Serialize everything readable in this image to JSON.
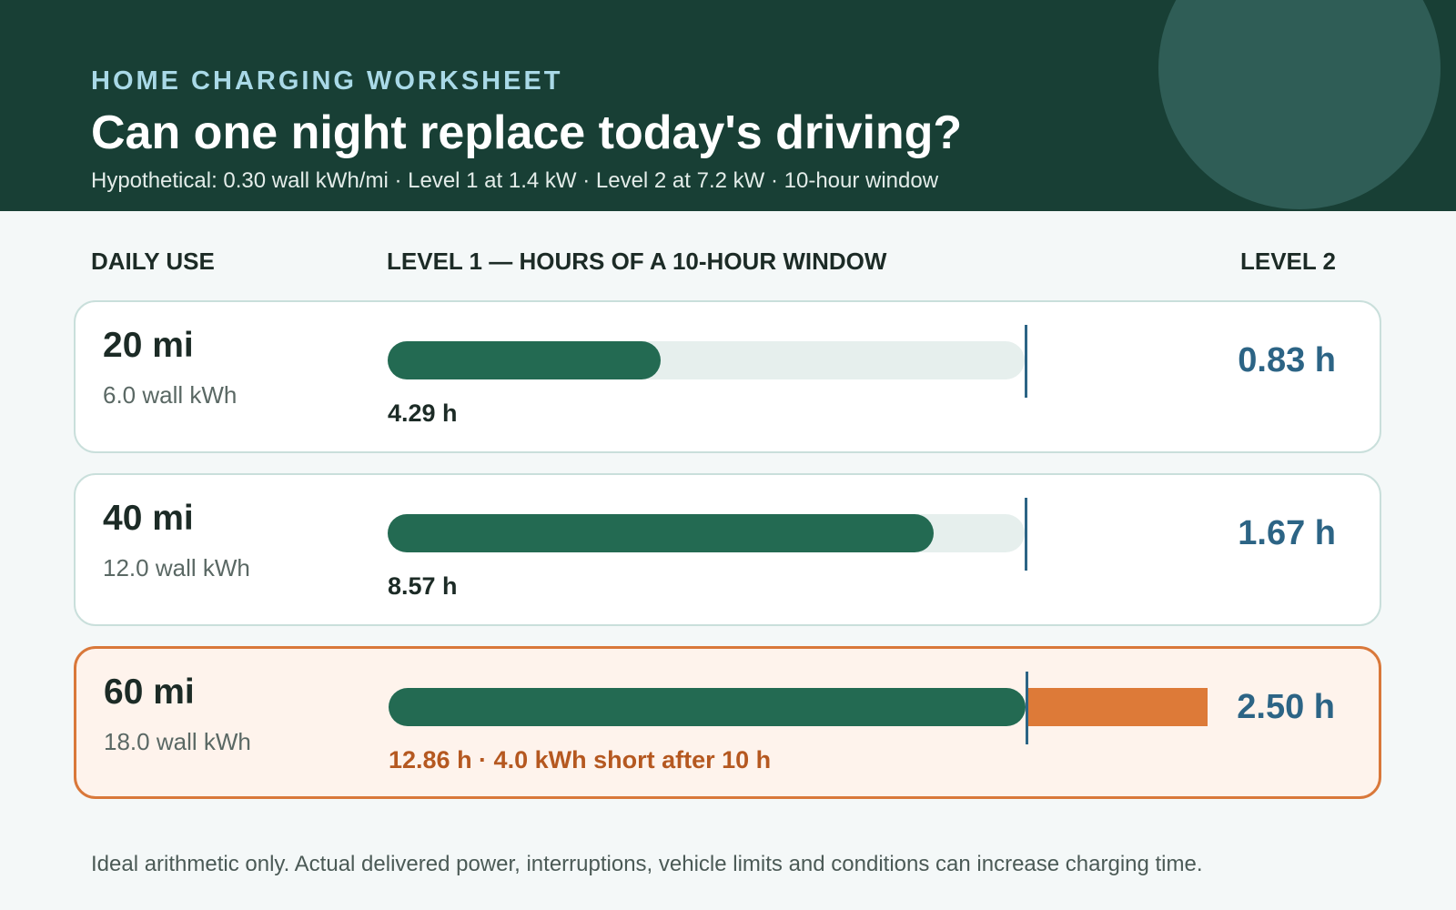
{
  "header": {
    "kicker": "HOME CHARGING WORKSHEET",
    "title": "Can one night replace today's driving?",
    "subtitle": "Hypothetical: 0.30 wall kWh/mi · Level 1 at 1.4 kW · Level 2 at 7.2 kW · 10-hour window"
  },
  "columns": {
    "daily": "DAILY USE",
    "level1": "LEVEL 1 — HOURS OF A 10-HOUR WINDOW",
    "level2": "LEVEL 2"
  },
  "footnote": "Ideal arithmetic only. Actual delivered power, interruptions, vehicle limits and conditions can increase charging time.",
  "colors": {
    "header_bg": "#183f35",
    "bar_fill": "#236a52",
    "shortfall": "#dd7a38",
    "window_marker": "#2c6485",
    "level2_text": "#2c6485"
  },
  "chart_data": {
    "type": "bar",
    "orientation": "horizontal",
    "window_hours": 10,
    "bar_scale_max_hours": 10,
    "categories": [
      "20 mi",
      "40 mi",
      "60 mi"
    ],
    "wall_kwh_labels": [
      "6.0 wall kWh",
      "12.0 wall kWh",
      "18.0 wall kWh"
    ],
    "level1_hours": [
      4.29,
      8.57,
      12.86
    ],
    "level1_labels": [
      "4.29 h",
      "8.57 h",
      "12.86 h · 4.0 kWh short after 10 h"
    ],
    "shortfall_kwh": [
      0,
      0,
      4.0
    ],
    "level2_labels": [
      "0.83 h",
      "1.67 h",
      "2.50 h"
    ],
    "rows": [
      {
        "miles": "20 mi",
        "kwh": "6.0 wall kWh",
        "l1_hours": 4.29,
        "l1_label": "4.29 h",
        "l2_label": "0.83 h",
        "over": false
      },
      {
        "miles": "40 mi",
        "kwh": "12.0 wall kWh",
        "l1_hours": 8.57,
        "l1_label": "8.57 h",
        "l2_label": "1.67 h",
        "over": false
      },
      {
        "miles": "60 mi",
        "kwh": "18.0 wall kWh",
        "l1_hours": 12.86,
        "l1_label": "12.86 h · 4.0 kWh short after 10 h",
        "l2_label": "2.50 h",
        "over": true
      }
    ]
  }
}
